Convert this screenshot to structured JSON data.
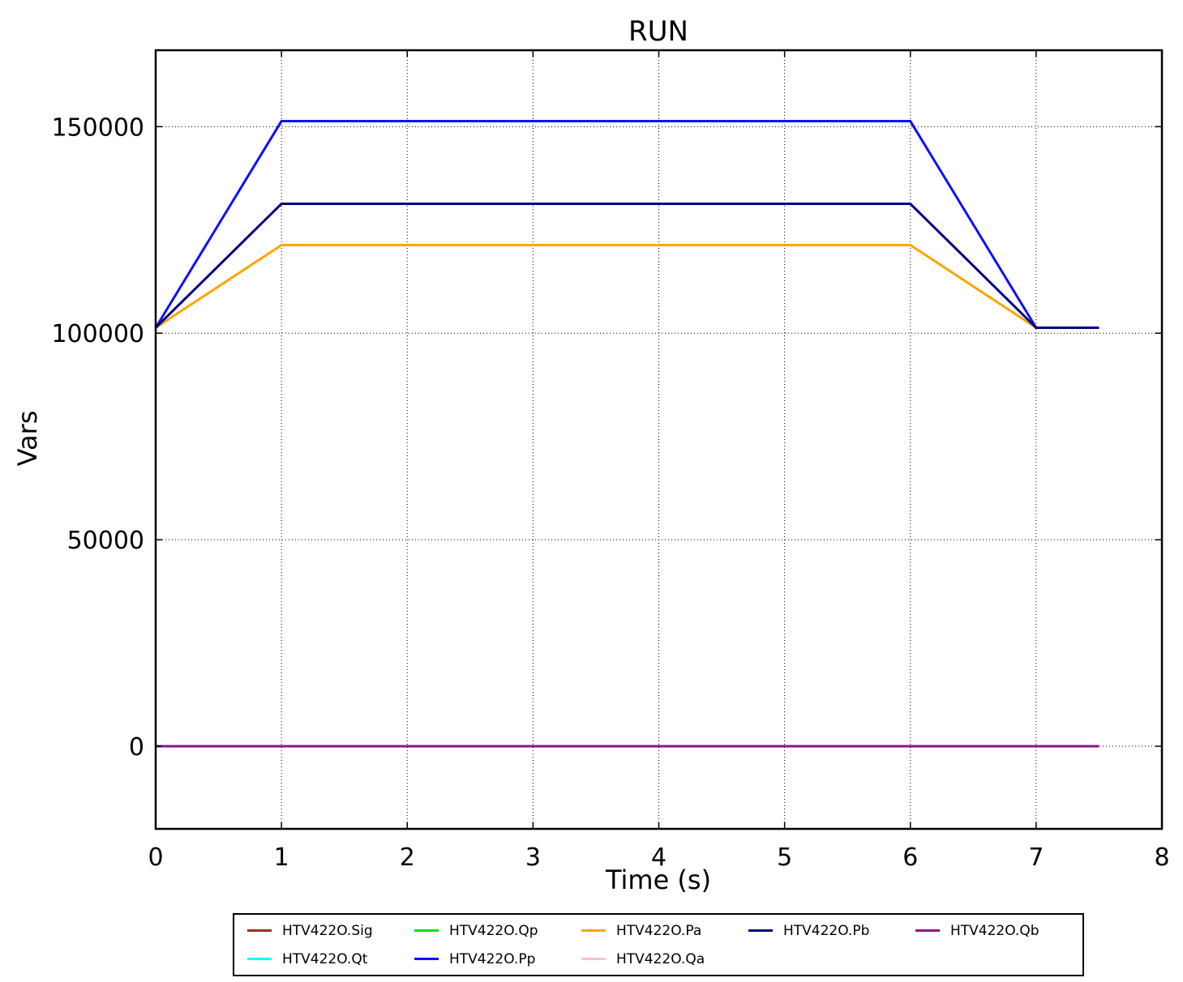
{
  "chart_data": {
    "type": "line",
    "title": "RUN",
    "xlabel": "Time (s)",
    "ylabel": "Vars",
    "xlim": [
      0,
      8
    ],
    "ylim": [
      -20000,
      168500
    ],
    "xticks": [
      0,
      1,
      2,
      3,
      4,
      5,
      6,
      7,
      8
    ],
    "yticks": [
      0,
      50000,
      100000,
      150000
    ],
    "grid": "dotted",
    "legend_position": "below-axes",
    "series": [
      {
        "name": "HTV422O.Sig",
        "color": "#A52A2A",
        "x": [
          0,
          7.5
        ],
        "y": [
          0,
          0
        ]
      },
      {
        "name": "HTV422O.Qt",
        "color": "#00FFFF",
        "x": [
          0,
          7.5
        ],
        "y": [
          0,
          0
        ]
      },
      {
        "name": "HTV422O.Qp",
        "color": "#00E400",
        "x": [
          0,
          7.5
        ],
        "y": [
          0,
          0
        ]
      },
      {
        "name": "HTV422O.Pp",
        "color": "#0F0FFF",
        "x": [
          0,
          1,
          6,
          7,
          7.5
        ],
        "y": [
          101325,
          151325,
          151325,
          101325,
          101325
        ]
      },
      {
        "name": "HTV422O.Pa",
        "color": "#FFA500",
        "x": [
          0,
          1,
          6,
          7,
          7.5
        ],
        "y": [
          101325,
          121325,
          121325,
          101325,
          101325
        ]
      },
      {
        "name": "HTV422O.Qa",
        "color": "#FFC0CB",
        "x": [
          0,
          7.5
        ],
        "y": [
          0,
          0
        ]
      },
      {
        "name": "HTV422O.Pb",
        "color": "#000080",
        "x": [
          0,
          1,
          6,
          7,
          7.5
        ],
        "y": [
          101325,
          131325,
          131325,
          101325,
          101325
        ]
      },
      {
        "name": "HTV422O.Qb",
        "color": "#8B128F",
        "x": [
          0,
          7.5
        ],
        "y": [
          0,
          0
        ]
      }
    ]
  },
  "legend": {
    "columns": [
      {
        "items": [
          {
            "label": "HTV422O.Sig",
            "color": "#A52A2A"
          },
          {
            "label": "HTV422O.Qt",
            "color": "#00FFFF"
          }
        ]
      },
      {
        "items": [
          {
            "label": "HTV422O.Qp",
            "color": "#00E400"
          },
          {
            "label": "HTV422O.Pp",
            "color": "#0F0FFF"
          }
        ]
      },
      {
        "items": [
          {
            "label": "HTV422O.Pa",
            "color": "#FFA500"
          },
          {
            "label": "HTV422O.Qa",
            "color": "#FFC0CB"
          }
        ]
      },
      {
        "items": [
          {
            "label": "HTV422O.Pb",
            "color": "#000080"
          }
        ]
      },
      {
        "items": [
          {
            "label": "HTV422O.Qb",
            "color": "#8B128F"
          }
        ]
      }
    ]
  }
}
